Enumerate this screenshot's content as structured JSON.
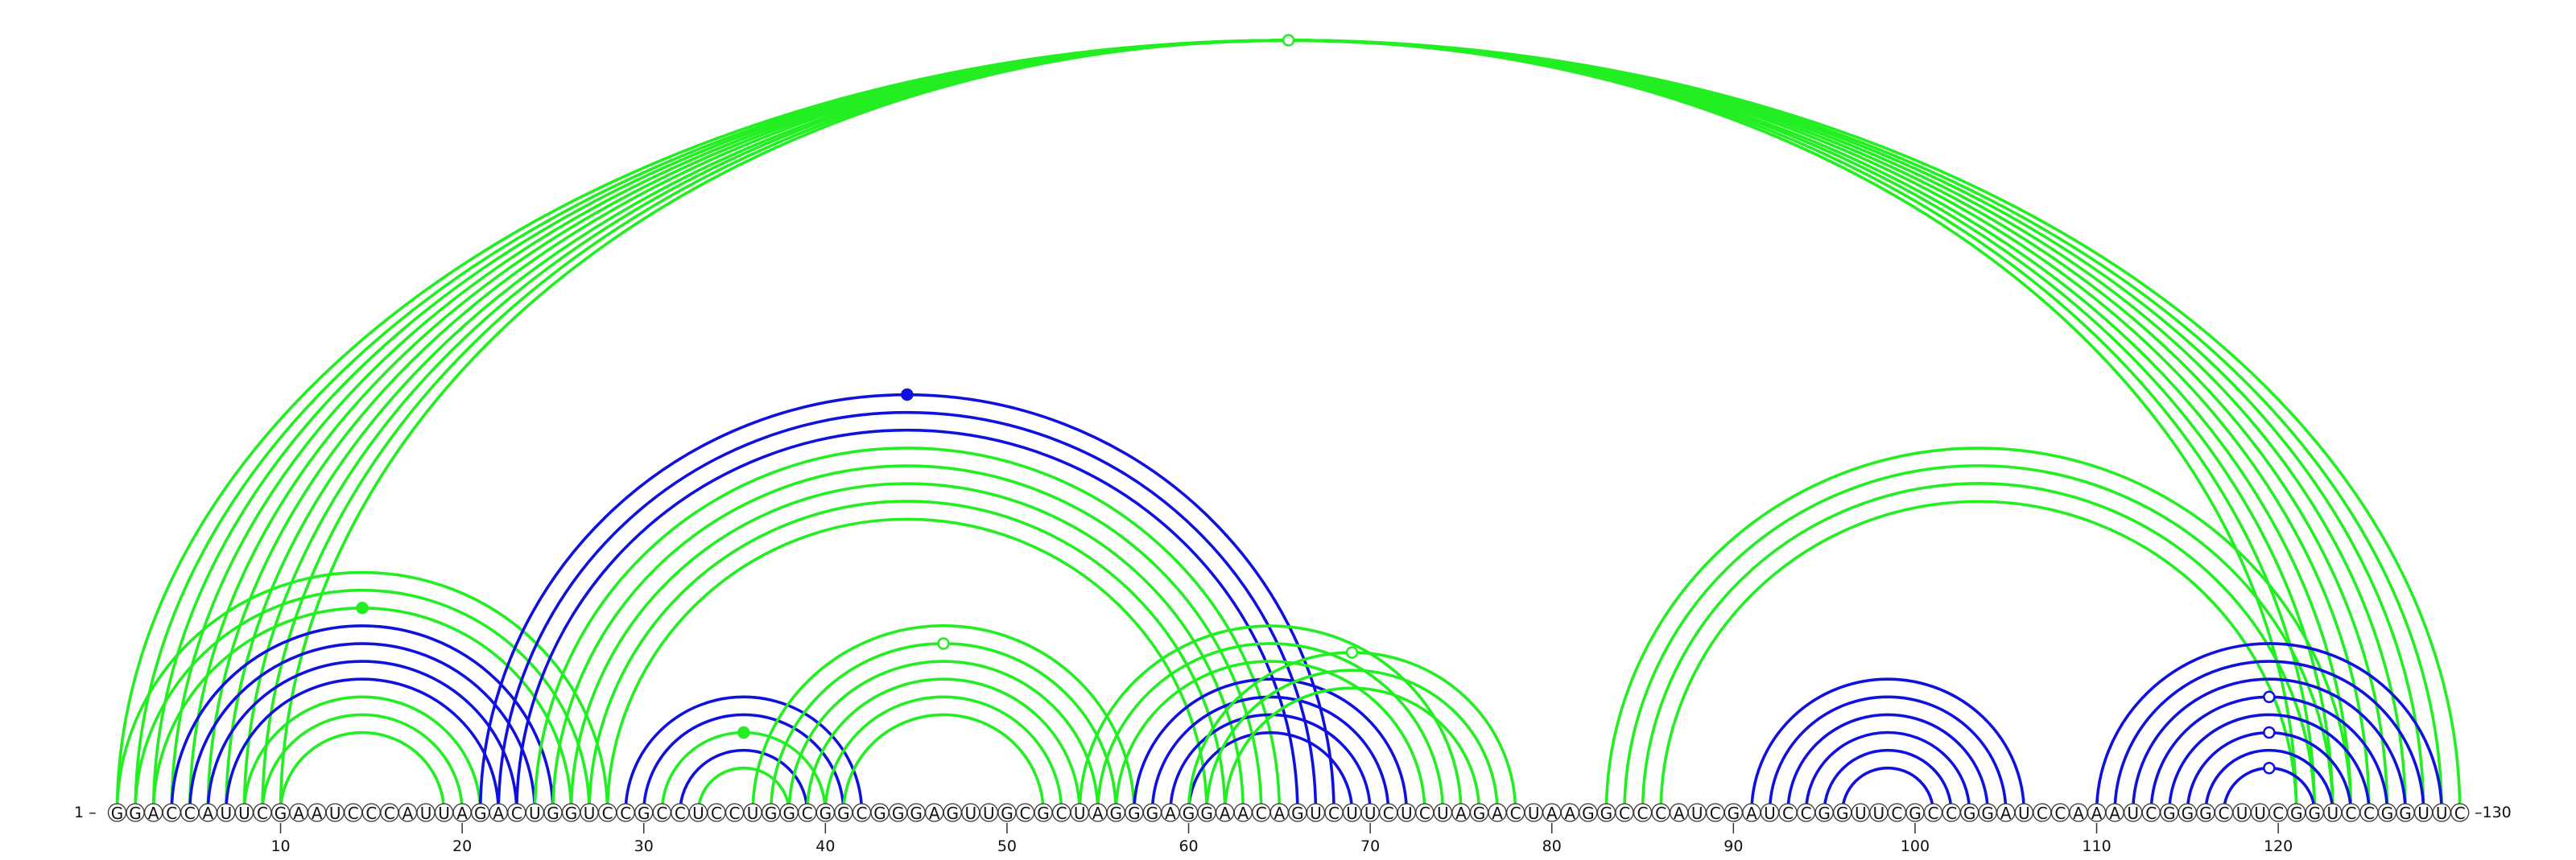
{
  "sequence": "GGACCAUUCGAAUCCCAUUAGACUGGUCCGCCUCCUGGCGGCGGGAGUUGCGCUAGGGAGGAACAGUCUUCUCUAGACUAAGGCCCAUCGAUCCGGUUCGCCGGAUCCAAAUCGGGCUUCGGUCCGGUUC",
  "start_label": "1 –",
  "end_label": "–130",
  "tick_positions": [
    10,
    20,
    30,
    40,
    50,
    60,
    70,
    80,
    90,
    100,
    110,
    120
  ],
  "tick_labels": [
    "10",
    "20",
    "30",
    "40",
    "50",
    "60",
    "70",
    "80",
    "90",
    "100",
    "110",
    "120"
  ],
  "colors": {
    "green": "#22ee22",
    "blue": "#1111dd"
  },
  "arcs": [
    {
      "from": 1,
      "to": 130,
      "color": "green"
    },
    {
      "from": 2,
      "to": 129,
      "color": "green"
    },
    {
      "from": 3,
      "to": 128,
      "color": "green"
    },
    {
      "from": 4,
      "to": 127,
      "color": "green"
    },
    {
      "from": 5,
      "to": 126,
      "color": "green"
    },
    {
      "from": 6,
      "to": 125,
      "color": "green"
    },
    {
      "from": 7,
      "to": 124,
      "color": "green"
    },
    {
      "from": 8,
      "to": 123,
      "color": "green"
    },
    {
      "from": 9,
      "to": 122,
      "color": "green"
    },
    {
      "from": 10,
      "to": 121,
      "color": "green"
    },
    {
      "from": 1,
      "to": 28,
      "color": "green"
    },
    {
      "from": 2,
      "to": 27,
      "color": "green"
    },
    {
      "from": 3,
      "to": 26,
      "color": "green"
    },
    {
      "from": 4,
      "to": 25,
      "color": "blue"
    },
    {
      "from": 5,
      "to": 24,
      "color": "blue"
    },
    {
      "from": 6,
      "to": 23,
      "color": "blue"
    },
    {
      "from": 7,
      "to": 22,
      "color": "blue"
    },
    {
      "from": 8,
      "to": 21,
      "color": "green"
    },
    {
      "from": 9,
      "to": 20,
      "color": "green"
    },
    {
      "from": 10,
      "to": 19,
      "color": "green"
    },
    {
      "from": 21,
      "to": 68,
      "color": "blue"
    },
    {
      "from": 22,
      "to": 67,
      "color": "blue"
    },
    {
      "from": 23,
      "to": 66,
      "color": "blue"
    },
    {
      "from": 24,
      "to": 65,
      "color": "green"
    },
    {
      "from": 25,
      "to": 64,
      "color": "green"
    },
    {
      "from": 26,
      "to": 63,
      "color": "green"
    },
    {
      "from": 27,
      "to": 62,
      "color": "green"
    },
    {
      "from": 28,
      "to": 61,
      "color": "green"
    },
    {
      "from": 29,
      "to": 42,
      "color": "blue"
    },
    {
      "from": 30,
      "to": 41,
      "color": "blue"
    },
    {
      "from": 31,
      "to": 40,
      "color": "green"
    },
    {
      "from": 32,
      "to": 39,
      "color": "blue"
    },
    {
      "from": 33,
      "to": 38,
      "color": "green"
    },
    {
      "from": 36,
      "to": 57,
      "color": "green"
    },
    {
      "from": 37,
      "to": 56,
      "color": "green"
    },
    {
      "from": 38,
      "to": 55,
      "color": "green"
    },
    {
      "from": 39,
      "to": 54,
      "color": "green"
    },
    {
      "from": 40,
      "to": 53,
      "color": "green"
    },
    {
      "from": 41,
      "to": 52,
      "color": "green"
    },
    {
      "from": 54,
      "to": 75,
      "color": "green"
    },
    {
      "from": 55,
      "to": 74,
      "color": "green"
    },
    {
      "from": 56,
      "to": 73,
      "color": "green"
    },
    {
      "from": 57,
      "to": 72,
      "color": "blue"
    },
    {
      "from": 58,
      "to": 71,
      "color": "blue"
    },
    {
      "from": 59,
      "to": 70,
      "color": "blue"
    },
    {
      "from": 60,
      "to": 69,
      "color": "blue"
    },
    {
      "from": 60,
      "to": 78,
      "color": "green"
    },
    {
      "from": 61,
      "to": 77,
      "color": "green"
    },
    {
      "from": 62,
      "to": 76,
      "color": "green"
    },
    {
      "from": 83,
      "to": 124,
      "color": "green"
    },
    {
      "from": 84,
      "to": 123,
      "color": "green"
    },
    {
      "from": 85,
      "to": 122,
      "color": "green"
    },
    {
      "from": 86,
      "to": 121,
      "color": "green"
    },
    {
      "from": 91,
      "to": 106,
      "color": "blue"
    },
    {
      "from": 92,
      "to": 105,
      "color": "blue"
    },
    {
      "from": 93,
      "to": 104,
      "color": "blue"
    },
    {
      "from": 94,
      "to": 103,
      "color": "blue"
    },
    {
      "from": 95,
      "to": 102,
      "color": "blue"
    },
    {
      "from": 96,
      "to": 101,
      "color": "blue"
    },
    {
      "from": 110,
      "to": 129,
      "color": "blue"
    },
    {
      "from": 111,
      "to": 128,
      "color": "blue"
    },
    {
      "from": 112,
      "to": 127,
      "color": "blue"
    },
    {
      "from": 113,
      "to": 126,
      "color": "blue"
    },
    {
      "from": 114,
      "to": 125,
      "color": "blue"
    },
    {
      "from": 115,
      "to": 124,
      "color": "blue"
    },
    {
      "from": 116,
      "to": 123,
      "color": "blue"
    },
    {
      "from": 117,
      "to": 122,
      "color": "blue"
    }
  ],
  "markers": [
    {
      "arc": 0,
      "filled": false
    },
    {
      "arc": 12,
      "filled": true
    },
    {
      "arc": 20,
      "filled": true
    },
    {
      "arc": 34,
      "filled": false
    },
    {
      "arc": 30,
      "filled": true
    },
    {
      "arc": 46,
      "filled": false
    },
    {
      "arc": 62,
      "filled": false
    },
    {
      "arc": 67,
      "filled": false
    },
    {
      "arc": 64,
      "filled": false
    },
    {
      "arc": 66,
      "filled": false
    }
  ]
}
